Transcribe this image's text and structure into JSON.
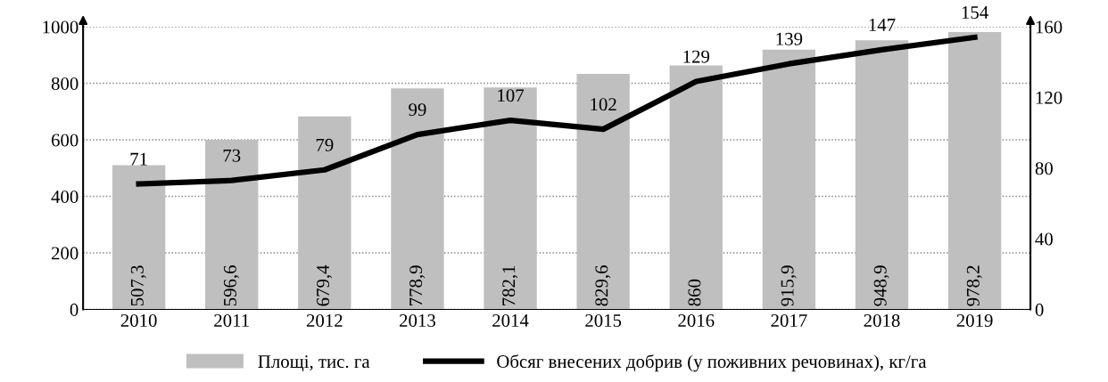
{
  "chart_data": {
    "type": "bar",
    "categories": [
      "2010",
      "2011",
      "2012",
      "2013",
      "2014",
      "2015",
      "2016",
      "2017",
      "2018",
      "2019"
    ],
    "series": [
      {
        "name": "Площі, тис. га",
        "color": "#bfbfbf",
        "values": [
          507.3,
          596.6,
          679.4,
          778.9,
          782.1,
          829.6,
          860,
          915.9,
          948.9,
          978.2
        ],
        "value_labels": [
          "507,3",
          "596,6",
          "679,4",
          "778,9",
          "782,1",
          "829,6",
          "860",
          "915,9",
          "948,9",
          "978,2"
        ]
      },
      {
        "name": "Обсяг внесених добрив (у поживних речовинах), кг/га",
        "type": "line",
        "axis": "y2",
        "color": "#000000",
        "values": [
          71,
          73,
          79,
          99,
          107,
          102,
          129,
          139,
          147,
          154
        ]
      }
    ],
    "data_labels": true,
    "ylim": [
      0,
      1000
    ],
    "yticks": [
      0,
      200,
      400,
      600,
      800,
      1000
    ],
    "y2lim": [
      0,
      160
    ],
    "y2ticks": [
      0,
      40,
      80,
      120,
      160
    ],
    "grid": "y",
    "legend": "bottom",
    "marker": "none",
    "line_style": "solid"
  }
}
